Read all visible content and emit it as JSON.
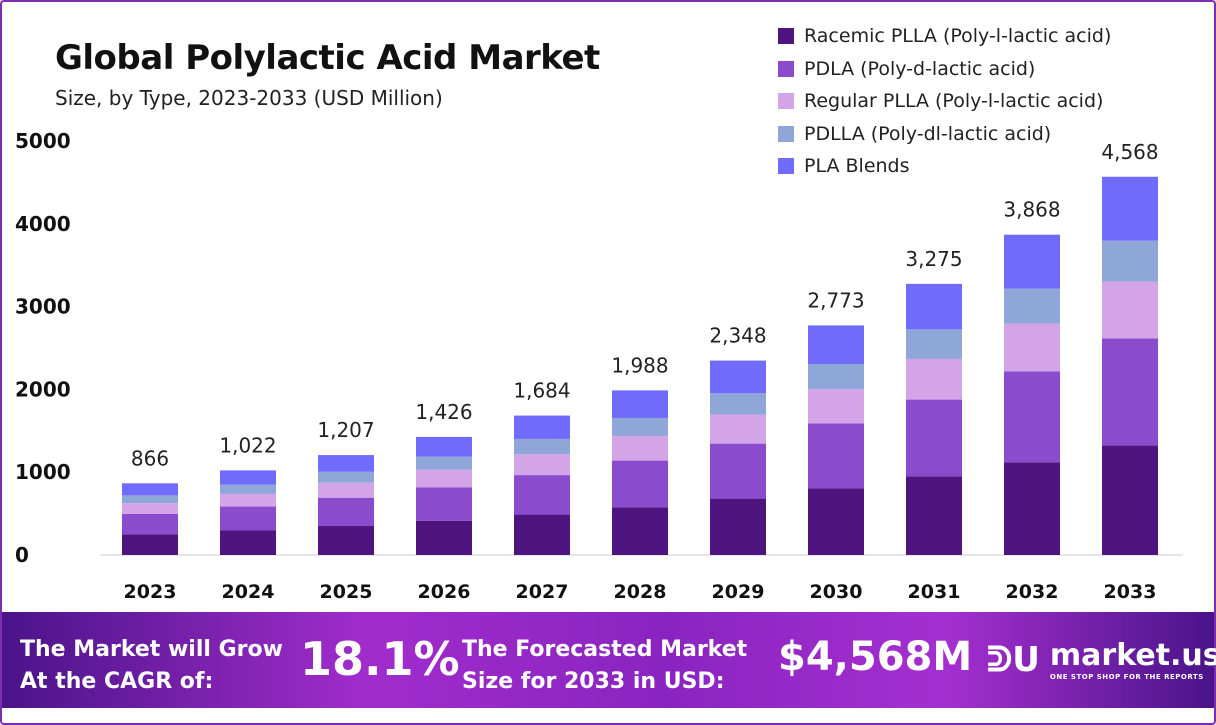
{
  "chart_data": {
    "type": "bar",
    "stacked": true,
    "title": "Global Polylactic Acid Market",
    "subtitle": "Size, by Type, 2023-2033 (USD Million)",
    "categories": [
      "2023",
      "2024",
      "2025",
      "2026",
      "2027",
      "2028",
      "2029",
      "2030",
      "2031",
      "2032",
      "2033"
    ],
    "totals": [
      "866",
      "1,022",
      "1,207",
      "1,426",
      "1,684",
      "1,988",
      "2,348",
      "2,773",
      "3,275",
      "3,868",
      "4,568"
    ],
    "total_values": [
      866,
      1022,
      1207,
      1426,
      1684,
      1988,
      2348,
      2773,
      3275,
      3868,
      4568
    ],
    "ylim": [
      0,
      5000
    ],
    "yticks": [
      "0",
      "1000",
      "2000",
      "3000",
      "4000",
      "5000"
    ],
    "grid": false,
    "legend_position": "top-right",
    "series": [
      {
        "name": "Racemic PLLA (Poly-l-lactic acid)",
        "color": "#4e1580",
        "values": [
          251,
          296,
          350,
          414,
          488,
          577,
          681,
          804,
          950,
          1120,
          1325
        ]
      },
      {
        "name": "PDLA (Poly-d-lactic acid)",
        "color": "#8a4ccc",
        "values": [
          245,
          289,
          342,
          404,
          477,
          563,
          664,
          785,
          927,
          1097,
          1290
        ]
      },
      {
        "name": "Regular PLLA (Poly-l-lactic acid)",
        "color": "#d3a4e8",
        "values": [
          130,
          153,
          181,
          214,
          253,
          298,
          352,
          416,
          491,
          578,
          687
        ]
      },
      {
        "name": "PDLLA (Poly-dl-lactic acid)",
        "color": "#8fa6d8",
        "values": [
          94,
          111,
          132,
          155,
          184,
          217,
          256,
          302,
          357,
          422,
          494
        ]
      },
      {
        "name": "PLA Blends",
        "color": "#716bfb",
        "values": [
          146,
          173,
          202,
          239,
          282,
          333,
          395,
          466,
          550,
          651,
          772
        ]
      }
    ]
  },
  "banner": {
    "cagr_label_1": "The Market will Grow",
    "cagr_label_2": "At the CAGR of:",
    "cagr_value": "18.1%",
    "forecast_label_1": "The Forecasted Market",
    "forecast_label_2": "Size for 2033 in USD:",
    "forecast_value": "$4,568M",
    "logo_name": "market.us",
    "logo_tagline": "ONE STOP SHOP FOR THE REPORTS"
  }
}
